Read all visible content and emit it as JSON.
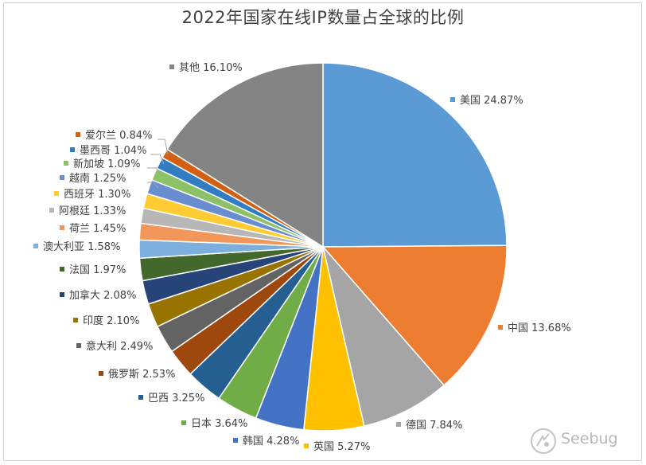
{
  "chart_data": {
    "type": "pie",
    "title": "2022年国家在线IP数量占全球的比例",
    "start_angle_deg": 0,
    "direction": "clockwise",
    "slices": [
      {
        "label": "美国",
        "value": 24.87,
        "text": "24.87%",
        "color": "#5b9bd5"
      },
      {
        "label": "中国",
        "value": 13.68,
        "text": "13.68%",
        "color": "#ed7d31"
      },
      {
        "label": "德国",
        "value": 7.84,
        "text": "7.84%",
        "color": "#a5a5a5"
      },
      {
        "label": "英国",
        "value": 5.27,
        "text": "5.27%",
        "color": "#ffc000"
      },
      {
        "label": "韩国",
        "value": 4.28,
        "text": "4.28%",
        "color": "#4472c4"
      },
      {
        "label": "日本",
        "value": 3.64,
        "text": "3.64%",
        "color": "#70ad47"
      },
      {
        "label": "巴西",
        "value": 3.25,
        "text": "3.25%",
        "color": "#255e91"
      },
      {
        "label": "俄罗斯",
        "value": 2.53,
        "text": "2.53%",
        "color": "#9e480e"
      },
      {
        "label": "意大利",
        "value": 2.49,
        "text": "2.49%",
        "color": "#636363"
      },
      {
        "label": "印度",
        "value": 2.1,
        "text": "2.10%",
        "color": "#997300"
      },
      {
        "label": "加拿大",
        "value": 2.08,
        "text": "2.08%",
        "color": "#264478"
      },
      {
        "label": "法国",
        "value": 1.97,
        "text": "1.97%",
        "color": "#43682b"
      },
      {
        "label": "澳大利亚",
        "value": 1.58,
        "text": "1.58%",
        "color": "#7cafdd"
      },
      {
        "label": "荷兰",
        "value": 1.45,
        "text": "1.45%",
        "color": "#f1975a"
      },
      {
        "label": "阿根廷",
        "value": 1.33,
        "text": "1.33%",
        "color": "#b7b7b7"
      },
      {
        "label": "西班牙",
        "value": 1.3,
        "text": "1.30%",
        "color": "#ffcd33"
      },
      {
        "label": "越南",
        "value": 1.25,
        "text": "1.25%",
        "color": "#698ed0"
      },
      {
        "label": "新加坡",
        "value": 1.09,
        "text": "1.09%",
        "color": "#8cc168"
      },
      {
        "label": "墨西哥",
        "value": 1.04,
        "text": "1.04%",
        "color": "#327dc2"
      },
      {
        "label": "爱尔兰",
        "value": 0.84,
        "text": "0.84%",
        "color": "#d26012"
      },
      {
        "label": "其他",
        "value": 16.1,
        "text": "16.10%",
        "color": "#848484"
      }
    ]
  },
  "watermark": {
    "text": "Seebug"
  }
}
